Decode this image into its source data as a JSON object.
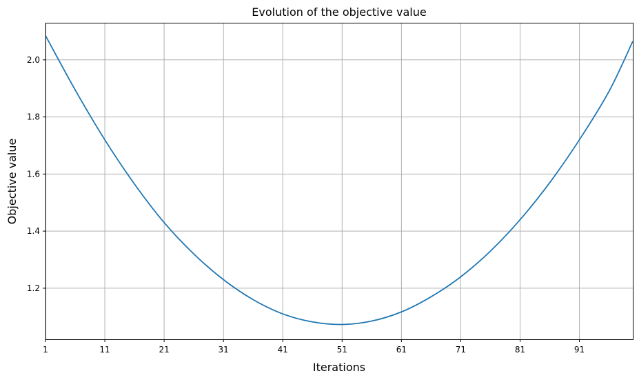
{
  "chart_data": {
    "type": "line",
    "title": "Evolution of the objective value",
    "xlabel": "Iterations",
    "ylabel": "Objective value",
    "xlim": [
      1,
      100
    ],
    "ylim": [
      1.021,
      2.13
    ],
    "x_ticks": [
      1,
      11,
      21,
      31,
      41,
      51,
      61,
      71,
      81,
      91
    ],
    "y_ticks": [
      1.2,
      1.4,
      1.6,
      1.8,
      2.0
    ],
    "grid": true,
    "series": [
      {
        "color": "#1f77b4",
        "x": [
          1,
          6,
          11,
          16,
          21,
          26,
          31,
          36,
          41,
          46,
          51,
          56,
          61,
          66,
          71,
          76,
          81,
          86,
          91,
          96,
          100
        ],
        "y": [
          2.085,
          1.895,
          1.72,
          1.565,
          1.43,
          1.32,
          1.23,
          1.16,
          1.11,
          1.082,
          1.073,
          1.085,
          1.117,
          1.17,
          1.24,
          1.33,
          1.44,
          1.57,
          1.72,
          1.89,
          2.065
        ]
      }
    ]
  }
}
